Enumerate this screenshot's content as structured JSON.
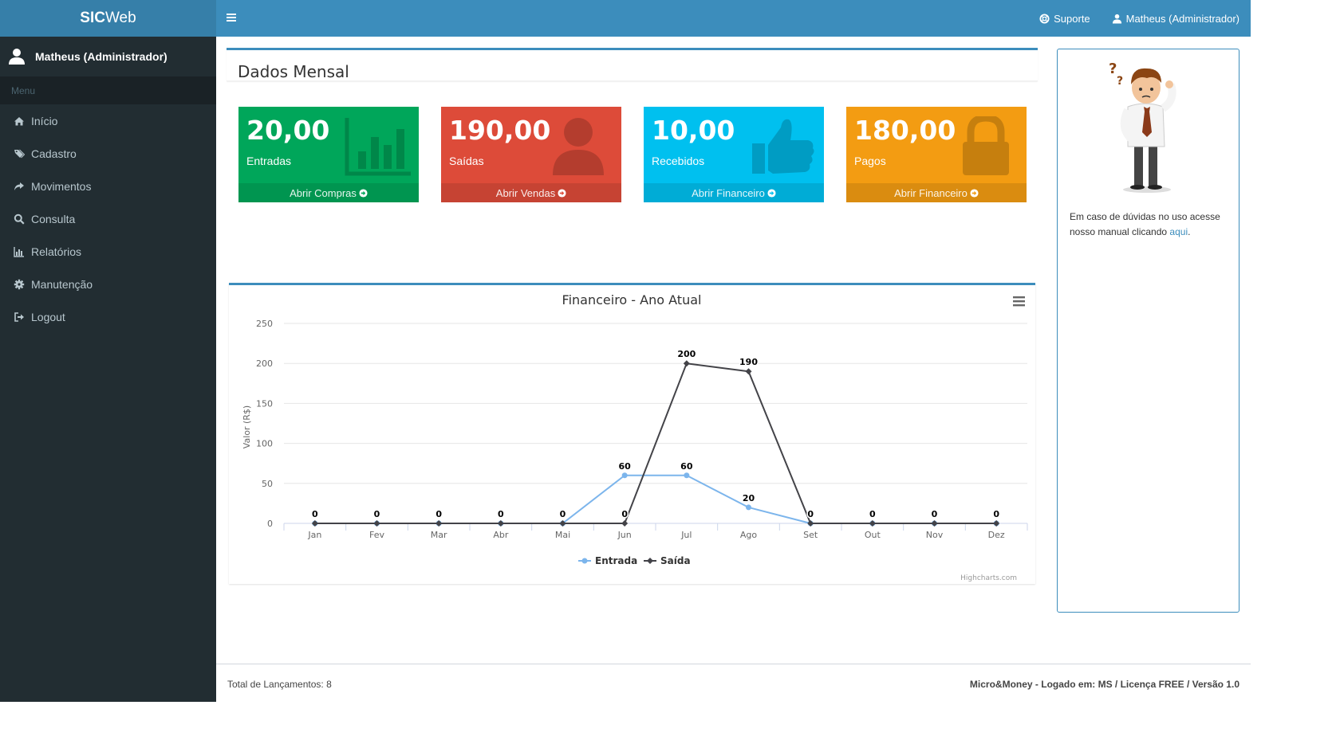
{
  "app": {
    "logo_bold": "SIC",
    "logo_light": "Web"
  },
  "sidebar": {
    "user_name": "Matheus (Administrador)",
    "menu_header": "Menu",
    "items": [
      {
        "label": "Início",
        "icon": "home-icon"
      },
      {
        "label": "Cadastro",
        "icon": "tags-icon"
      },
      {
        "label": "Movimentos",
        "icon": "share-icon"
      },
      {
        "label": "Consulta",
        "icon": "search-icon"
      },
      {
        "label": "Relatórios",
        "icon": "bar-chart-icon"
      },
      {
        "label": "Manutenção",
        "icon": "gear-icon"
      },
      {
        "label": "Logout",
        "icon": "sign-out-icon"
      }
    ]
  },
  "topbar": {
    "support_label": "Suporte",
    "user_label": "Matheus (Administrador)"
  },
  "main": {
    "title": "Dados Mensal",
    "cards": [
      {
        "value": "20,00",
        "label": "Entradas",
        "link": "Abrir Compras",
        "color": "#00a65a",
        "icon": "bar-chart-icon"
      },
      {
        "value": "190,00",
        "label": "Saídas",
        "link": "Abrir Vendas",
        "color": "#dd4b39",
        "icon": "user-icon"
      },
      {
        "value": "10,00",
        "label": "Recebidos",
        "link": "Abrir Financeiro",
        "color": "#00c0ef",
        "icon": "thumbs-up-icon"
      },
      {
        "value": "180,00",
        "label": "Pagos",
        "link": "Abrir Financeiro",
        "color": "#f39c12",
        "icon": "lock-icon"
      }
    ]
  },
  "chart_data": {
    "type": "line",
    "title": "Financeiro - Ano Atual",
    "ylabel": "Valor (R$)",
    "xlabel": "",
    "ylim": [
      0,
      250
    ],
    "yticks": [
      0,
      50,
      100,
      150,
      200,
      250
    ],
    "categories": [
      "Jan",
      "Fev",
      "Mar",
      "Abr",
      "Mai",
      "Jun",
      "Jul",
      "Ago",
      "Set",
      "Out",
      "Nov",
      "Dez"
    ],
    "series": [
      {
        "name": "Entrada",
        "values": [
          0,
          0,
          0,
          0,
          0,
          60,
          60,
          20,
          0,
          0,
          0,
          0
        ],
        "color": "#7cb5ec"
      },
      {
        "name": "Saída",
        "values": [
          0,
          0,
          0,
          0,
          0,
          0,
          200,
          190,
          0,
          0,
          0,
          0
        ],
        "color": "#434348"
      }
    ],
    "legend": "bottom-center",
    "credits": "Highcharts.com",
    "grid": true,
    "data_labels": true
  },
  "help": {
    "text": "Em caso de dúvidas no uso acesse nosso manual clicando ",
    "link": "aqui",
    "suffix": "."
  },
  "footer": {
    "left": "Total de Lançamentos: 8",
    "right": "Micro&Money - Logado em: MS / Licença FREE / Versão 1.0"
  }
}
